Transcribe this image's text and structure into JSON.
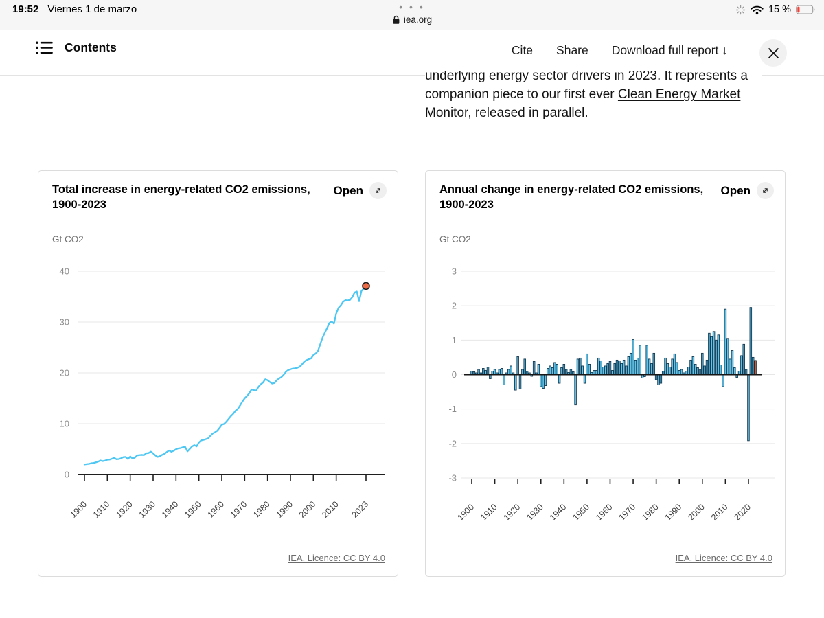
{
  "status_bar": {
    "time": "19:52",
    "date": "Viernes 1 de marzo",
    "tab_overflow_dots": "• • •",
    "site": "iea.org",
    "battery_percent_label": "15 %",
    "battery_level": 0.15,
    "battery_color": "#ff3b30"
  },
  "header": {
    "contents_label": "Contents",
    "cite_label": "Cite",
    "share_label": "Share",
    "download_label": "Download full report ↓"
  },
  "intro_paragraph": {
    "lines": [
      {
        "segments": [
          {
            "text": "underlying energy sector drivers in 2023. It represents a"
          }
        ]
      },
      {
        "segments": [
          {
            "text": "companion piece to our first ever "
          },
          {
            "text": "Clean Energy Market",
            "link": true
          }
        ]
      },
      {
        "segments": [
          {
            "text": "Monitor",
            "link": true
          },
          {
            "text": ", released in parallel."
          }
        ]
      }
    ]
  },
  "cards": [
    {
      "title": "Total increase in energy-related CO2 emissions, 1900-2023",
      "open_label": "Open",
      "unit": "Gt CO2",
      "license_label": "IEA. Licence: CC BY 4.0"
    },
    {
      "title": "Annual change in energy-related CO2 emissions, 1900-2023",
      "open_label": "Open",
      "unit": "Gt CO2",
      "license_label": "IEA. Licence: CC BY 4.0"
    }
  ],
  "chart_data": [
    {
      "type": "line",
      "title": "Total increase in energy-related CO2 emissions, 1900-2023",
      "ylabel": "Gt CO2",
      "grid": true,
      "legend": "none",
      "ylim": [
        0,
        40
      ],
      "y_ticks": [
        0,
        10,
        20,
        30,
        40
      ],
      "x_range": [
        1900,
        2023
      ],
      "x_tick_years": [
        1900,
        1910,
        1920,
        1930,
        1940,
        1950,
        1960,
        1970,
        1980,
        1990,
        2000,
        2010,
        2023
      ],
      "x_tick_labels": [
        "1900",
        "1910",
        "1920",
        "1930",
        "1940",
        "1950",
        "1960",
        "1970",
        "1980",
        "1990",
        "2000",
        "2010",
        "2023"
      ],
      "line_color": "#4ec7f2",
      "endpoint_color": "#ee6a45",
      "endpoint_stroke": "#1c1c1c",
      "start_year": 1900,
      "values": [
        1.98,
        2.05,
        2.1,
        2.22,
        2.26,
        2.4,
        2.54,
        2.76,
        2.64,
        2.74,
        2.9,
        2.94,
        3.1,
        3.28,
        3.0,
        3.04,
        3.2,
        3.42,
        3.46,
        3.05,
        3.55,
        3.15,
        3.32,
        3.76,
        3.82,
        3.86,
        3.82,
        4.18,
        4.22,
        4.5,
        4.15,
        3.75,
        3.45,
        3.62,
        3.88,
        4.08,
        4.44,
        4.72,
        4.48,
        4.68,
        4.98,
        5.14,
        5.2,
        5.36,
        5.44,
        4.56,
        5.02,
        5.52,
        5.78,
        5.54,
        6.3,
        6.7,
        6.8,
        6.95,
        7.1,
        7.6,
        8.05,
        8.3,
        8.6,
        9.15,
        9.8,
        9.95,
        10.4,
        10.95,
        11.5,
        11.95,
        12.55,
        12.9,
        13.6,
        14.35,
        15.0,
        15.45,
        16.0,
        16.75,
        16.6,
        16.5,
        17.25,
        17.75,
        18.1,
        18.75,
        18.55,
        18.2,
        17.9,
        18.0,
        18.55,
        18.9,
        19.15,
        19.6,
        20.2,
        20.55,
        20.7,
        20.85,
        20.9,
        21.0,
        21.2,
        21.65,
        22.2,
        22.5,
        22.7,
        22.85,
        23.5,
        23.8,
        24.3,
        25.6,
        26.9,
        27.9,
        28.8,
        29.8,
        30.1,
        29.7,
        31.7,
        32.8,
        33.3,
        34.0,
        34.3,
        34.25,
        34.35,
        34.9,
        35.8,
        36.0,
        34.1,
        36.1,
        36.6,
        37.1
      ]
    },
    {
      "type": "bar",
      "title": "Annual change in energy-related CO2 emissions, 1900-2023",
      "ylabel": "Gt CO2",
      "grid": true,
      "legend": "none",
      "ylim": [
        -3,
        3
      ],
      "y_ticks": [
        -3,
        -2,
        -1,
        0,
        1,
        2,
        3
      ],
      "x_range": [
        1900,
        2023
      ],
      "x_tick_years": [
        1900,
        1910,
        1920,
        1930,
        1940,
        1950,
        1960,
        1970,
        1980,
        1990,
        2000,
        2010,
        2020
      ],
      "x_tick_labels": [
        "1900",
        "1910",
        "1920",
        "1930",
        "1940",
        "1950",
        "1960",
        "1970",
        "1980",
        "1990",
        "2000",
        "2010",
        "2020"
      ],
      "bar_color": "#62c3e8",
      "bar_stroke": "#143a52",
      "last_bar_color": "#e8603c",
      "last_bar_stroke": "#1c1c1c",
      "start_year": 1900,
      "values": [
        0.1,
        0.08,
        0.05,
        0.15,
        0.05,
        0.18,
        0.12,
        0.22,
        -0.12,
        0.1,
        0.15,
        0.05,
        0.15,
        0.18,
        -0.3,
        0.05,
        0.15,
        0.25,
        0.05,
        -0.45,
        0.52,
        -0.42,
        0.15,
        0.45,
        0.1,
        0.05,
        -0.05,
        0.38,
        0.05,
        0.3,
        -0.35,
        -0.4,
        -0.32,
        0.18,
        0.25,
        0.2,
        0.35,
        0.3,
        -0.25,
        0.2,
        0.3,
        0.15,
        0.06,
        0.15,
        0.08,
        -0.88,
        0.45,
        0.48,
        0.25,
        -0.25,
        0.6,
        0.3,
        0.06,
        0.12,
        0.12,
        0.48,
        0.4,
        0.22,
        0.25,
        0.32,
        0.38,
        0.12,
        0.32,
        0.42,
        0.4,
        0.32,
        0.42,
        0.25,
        0.52,
        0.62,
        1.02,
        0.42,
        0.48,
        0.85,
        -0.1,
        -0.06,
        0.85,
        0.45,
        0.32,
        0.62,
        -0.15,
        -0.3,
        -0.25,
        0.1,
        0.48,
        0.32,
        0.22,
        0.45,
        0.6,
        0.35,
        0.12,
        0.15,
        0.05,
        0.1,
        0.22,
        0.42,
        0.52,
        0.3,
        0.2,
        0.15,
        0.62,
        0.25,
        0.42,
        1.2,
        1.1,
        1.25,
        1.0,
        1.15,
        0.28,
        -0.35,
        1.9,
        1.05,
        0.45,
        0.7,
        0.2,
        -0.08,
        0.1,
        0.55,
        0.88,
        0.15,
        -1.92,
        1.95,
        0.5,
        0.41
      ]
    }
  ]
}
